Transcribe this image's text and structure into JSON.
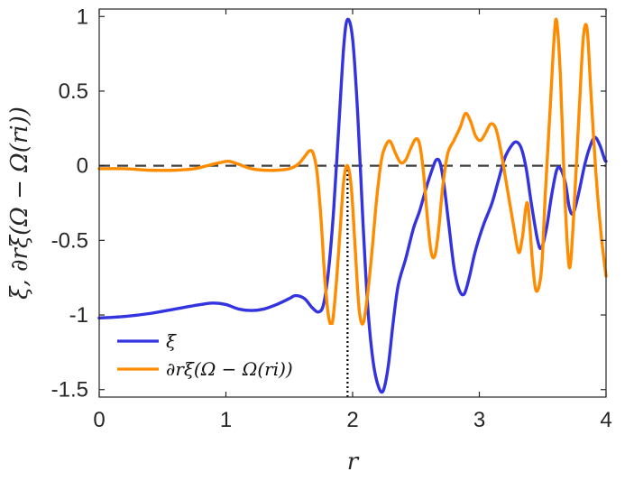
{
  "chart_data": {
    "type": "line",
    "xlabel": "r",
    "ylabel": "ξ, ∂rξ(Ω − Ω(ri))",
    "xlim": [
      0,
      4
    ],
    "ylim": [
      -1.55,
      1.05
    ],
    "xticks": [
      0,
      1,
      2,
      3,
      4
    ],
    "xtick_labels": [
      "0",
      "1",
      "2",
      "3",
      "4"
    ],
    "yticks": [
      1,
      0.5,
      0,
      -0.5,
      -1,
      -1.5
    ],
    "ytick_labels": [
      "1",
      "0.5",
      "0",
      "-0.5",
      "-1",
      "-1.5"
    ],
    "grid": false,
    "legend": {
      "placement": "bottom-left",
      "entries": [
        "ξ",
        "∂rξ(Ω − Ω(ri))"
      ]
    },
    "reference_lines": [
      {
        "kind": "horizontal-dashed",
        "y": 0,
        "color": "#404040"
      },
      {
        "kind": "vertical-dotted",
        "x": 1.96,
        "y_from": -1.55,
        "y_to": 0,
        "color": "#000000"
      }
    ],
    "series": [
      {
        "name": "ξ",
        "color": "#3333e0",
        "points": [
          [
            0.0,
            -1.02
          ],
          [
            0.2,
            -1.01
          ],
          [
            0.4,
            -0.99
          ],
          [
            0.6,
            -0.96
          ],
          [
            0.8,
            -0.93
          ],
          [
            0.9,
            -0.92
          ],
          [
            1.0,
            -0.93
          ],
          [
            1.1,
            -0.96
          ],
          [
            1.2,
            -0.97
          ],
          [
            1.3,
            -0.96
          ],
          [
            1.4,
            -0.93
          ],
          [
            1.5,
            -0.89
          ],
          [
            1.55,
            -0.87
          ],
          [
            1.62,
            -0.89
          ],
          [
            1.68,
            -0.95
          ],
          [
            1.73,
            -0.98
          ],
          [
            1.77,
            -0.93
          ],
          [
            1.81,
            -0.7
          ],
          [
            1.85,
            -0.3
          ],
          [
            1.89,
            0.25
          ],
          [
            1.93,
            0.8
          ],
          [
            1.96,
            0.98
          ],
          [
            2.0,
            0.85
          ],
          [
            2.04,
            0.35
          ],
          [
            2.08,
            -0.35
          ],
          [
            2.12,
            -0.95
          ],
          [
            2.16,
            -1.3
          ],
          [
            2.2,
            -1.47
          ],
          [
            2.24,
            -1.51
          ],
          [
            2.28,
            -1.35
          ],
          [
            2.32,
            -1.05
          ],
          [
            2.36,
            -0.8
          ],
          [
            2.42,
            -0.62
          ],
          [
            2.48,
            -0.42
          ],
          [
            2.53,
            -0.3
          ],
          [
            2.58,
            -0.15
          ],
          [
            2.63,
            -0.02
          ],
          [
            2.66,
            0.04
          ],
          [
            2.69,
            0.02
          ],
          [
            2.72,
            -0.12
          ],
          [
            2.76,
            -0.4
          ],
          [
            2.8,
            -0.68
          ],
          [
            2.84,
            -0.83
          ],
          [
            2.88,
            -0.86
          ],
          [
            2.92,
            -0.75
          ],
          [
            2.96,
            -0.6
          ],
          [
            3.0,
            -0.48
          ],
          [
            3.04,
            -0.38
          ],
          [
            3.1,
            -0.25
          ],
          [
            3.15,
            -0.1
          ],
          [
            3.2,
            0.05
          ],
          [
            3.25,
            0.13
          ],
          [
            3.29,
            0.16
          ],
          [
            3.33,
            0.12
          ],
          [
            3.37,
            -0.02
          ],
          [
            3.41,
            -0.25
          ],
          [
            3.46,
            -0.5
          ],
          [
            3.49,
            -0.55
          ],
          [
            3.53,
            -0.42
          ],
          [
            3.57,
            -0.2
          ],
          [
            3.61,
            -0.03
          ],
          [
            3.64,
            -0.02
          ],
          [
            3.68,
            -0.12
          ],
          [
            3.71,
            -0.28
          ],
          [
            3.74,
            -0.32
          ],
          [
            3.78,
            -0.2
          ],
          [
            3.83,
            0.0
          ],
          [
            3.87,
            0.12
          ],
          [
            3.91,
            0.19
          ],
          [
            3.95,
            0.14
          ],
          [
            3.99,
            0.04
          ],
          [
            4.0,
            0.03
          ]
        ]
      },
      {
        "name": "∂rξ(Ω − Ω(ri))",
        "color": "#ff8c00",
        "points": [
          [
            0.0,
            -0.02
          ],
          [
            0.2,
            -0.02
          ],
          [
            0.4,
            -0.03
          ],
          [
            0.6,
            -0.03
          ],
          [
            0.75,
            -0.02
          ],
          [
            0.85,
            0.0
          ],
          [
            0.95,
            0.02
          ],
          [
            1.02,
            0.03
          ],
          [
            1.1,
            0.01
          ],
          [
            1.2,
            -0.02
          ],
          [
            1.3,
            -0.03
          ],
          [
            1.4,
            -0.03
          ],
          [
            1.5,
            -0.02
          ],
          [
            1.57,
            0.01
          ],
          [
            1.62,
            0.06
          ],
          [
            1.66,
            0.1
          ],
          [
            1.69,
            0.08
          ],
          [
            1.72,
            -0.05
          ],
          [
            1.75,
            -0.35
          ],
          [
            1.78,
            -0.75
          ],
          [
            1.81,
            -1.01
          ],
          [
            1.84,
            -1.05
          ],
          [
            1.87,
            -0.8
          ],
          [
            1.9,
            -0.45
          ],
          [
            1.93,
            -0.1
          ],
          [
            1.96,
            0.0
          ],
          [
            1.99,
            -0.15
          ],
          [
            2.02,
            -0.55
          ],
          [
            2.05,
            -0.95
          ],
          [
            2.08,
            -1.06
          ],
          [
            2.11,
            -0.92
          ],
          [
            2.15,
            -0.6
          ],
          [
            2.19,
            -0.22
          ],
          [
            2.23,
            0.05
          ],
          [
            2.27,
            0.15
          ],
          [
            2.3,
            0.16
          ],
          [
            2.34,
            0.08
          ],
          [
            2.38,
            0.02
          ],
          [
            2.42,
            0.04
          ],
          [
            2.46,
            0.12
          ],
          [
            2.5,
            0.18
          ],
          [
            2.53,
            0.14
          ],
          [
            2.56,
            -0.05
          ],
          [
            2.59,
            -0.35
          ],
          [
            2.62,
            -0.58
          ],
          [
            2.65,
            -0.6
          ],
          [
            2.68,
            -0.42
          ],
          [
            2.71,
            -0.15
          ],
          [
            2.75,
            0.08
          ],
          [
            2.8,
            0.17
          ],
          [
            2.85,
            0.26
          ],
          [
            2.89,
            0.35
          ],
          [
            2.93,
            0.3
          ],
          [
            2.97,
            0.2
          ],
          [
            3.01,
            0.17
          ],
          [
            3.05,
            0.22
          ],
          [
            3.09,
            0.28
          ],
          [
            3.13,
            0.25
          ],
          [
            3.17,
            0.1
          ],
          [
            3.22,
            -0.15
          ],
          [
            3.27,
            -0.4
          ],
          [
            3.31,
            -0.58
          ],
          [
            3.34,
            -0.48
          ],
          [
            3.38,
            -0.25
          ],
          [
            3.42,
            -0.65
          ],
          [
            3.45,
            -0.84
          ],
          [
            3.49,
            -0.7
          ],
          [
            3.52,
            -0.2
          ],
          [
            3.56,
            0.4
          ],
          [
            3.59,
            0.85
          ],
          [
            3.61,
            0.97
          ],
          [
            3.64,
            0.6
          ],
          [
            3.67,
            -0.1
          ],
          [
            3.7,
            -0.6
          ],
          [
            3.72,
            -0.65
          ],
          [
            3.75,
            -0.25
          ],
          [
            3.79,
            0.4
          ],
          [
            3.82,
            0.85
          ],
          [
            3.85,
            0.92
          ],
          [
            3.88,
            0.5
          ],
          [
            3.92,
            -0.05
          ],
          [
            3.96,
            -0.45
          ],
          [
            4.0,
            -0.74
          ]
        ]
      }
    ]
  }
}
